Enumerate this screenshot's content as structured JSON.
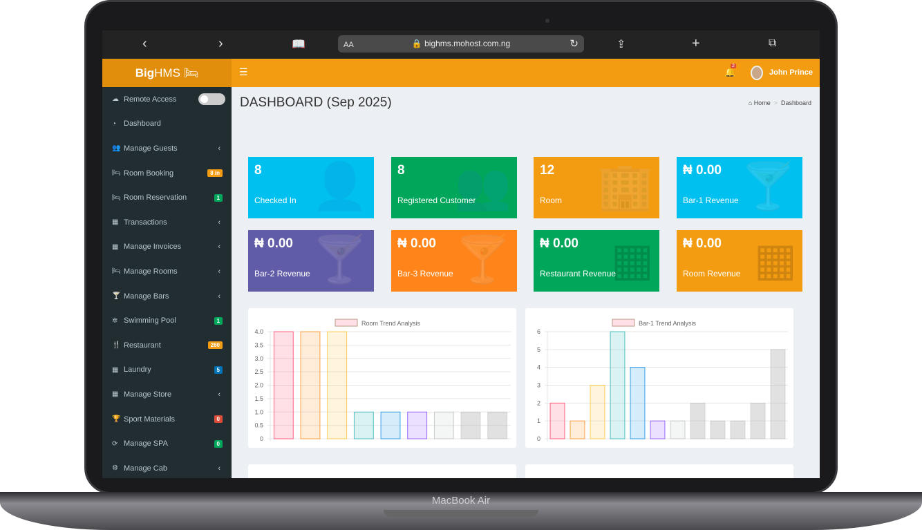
{
  "device": {
    "label": "MacBook Air"
  },
  "browser": {
    "url": "bighms.mohost.com.ng",
    "text_size": "AA",
    "icons": [
      "back-icon",
      "forward-icon",
      "bookmarks-icon",
      "reload-icon",
      "share-icon",
      "new-tab-icon",
      "tabs-icon"
    ]
  },
  "header": {
    "logo_bold": "Big",
    "logo_rest": "HMS",
    "notifications": "2",
    "user": "John Prince",
    "accent": "#f39c12"
  },
  "sidebar": {
    "items": [
      {
        "label": "Remote Access",
        "icon": "cloud-icon",
        "toggle": false
      },
      {
        "label": "Dashboard",
        "icon": "dashboard-icon"
      },
      {
        "label": "Manage Guests",
        "icon": "users-icon",
        "chevron": true
      },
      {
        "label": "Room Booking",
        "icon": "bed-icon",
        "badge": "8 in",
        "badge_color": "#f39c12"
      },
      {
        "label": "Room Reservation",
        "icon": "bed-icon",
        "badge": "1",
        "badge_color": "#00a65a"
      },
      {
        "label": "Transactions",
        "icon": "table-icon",
        "chevron": true
      },
      {
        "label": "Manage Invoices",
        "icon": "table-icon",
        "chevron": true
      },
      {
        "label": "Manage Rooms",
        "icon": "bed-icon",
        "chevron": true
      },
      {
        "label": "Manage Bars",
        "icon": "cocktail-icon",
        "chevron": true
      },
      {
        "label": "Swimming Pool",
        "icon": "gear-icon",
        "badge": "1",
        "badge_color": "#00a65a"
      },
      {
        "label": "Restaurant",
        "icon": "cutlery-icon",
        "badge": "260",
        "badge_color": "#f39c12"
      },
      {
        "label": "Laundry",
        "icon": "table-icon",
        "badge": "5",
        "badge_color": "#0073b7"
      },
      {
        "label": "Manage Store",
        "icon": "table-icon",
        "chevron": true
      },
      {
        "label": "Sport Materials",
        "icon": "trophy-icon",
        "badge": "0",
        "badge_color": "#dd4b39"
      },
      {
        "label": "Manage SPA",
        "icon": "refresh-icon",
        "badge": "0",
        "badge_color": "#00a65a"
      },
      {
        "label": "Manage Cab",
        "icon": "cogs-icon",
        "chevron": true
      }
    ]
  },
  "main": {
    "title": "DASHBOARD (Sep 2025)",
    "breadcrumb": [
      "Home",
      "Dashboard"
    ],
    "cards": [
      {
        "value": "8",
        "label": "Checked In",
        "color": "#00c0ef",
        "icon": "user-plus-icon"
      },
      {
        "value": "8",
        "label": "Registered Customer",
        "color": "#00a65a",
        "icon": "users-icon"
      },
      {
        "value": "12",
        "label": "Room",
        "color": "#f39c12",
        "icon": "building-icon"
      },
      {
        "value": "₦ 0.00",
        "label": "Bar-1 Revenue",
        "color": "#00c0ef",
        "icon": "cocktail-icon"
      },
      {
        "value": "₦ 0.00",
        "label": "Bar-2 Revenue",
        "color": "#605ca8",
        "icon": "cocktail-icon"
      },
      {
        "value": "₦ 0.00",
        "label": "Bar-3 Revenue",
        "color": "#ff851b",
        "icon": "cocktail-icon"
      },
      {
        "value": "₦ 0.00",
        "label": "Restaurant Revenue",
        "color": "#00a65a",
        "icon": "calculator-icon"
      },
      {
        "value": "₦ 0.00",
        "label": "Room Revenue",
        "color": "#f39c12",
        "icon": "calculator-icon"
      }
    ]
  },
  "chart_data": [
    {
      "type": "bar",
      "legend": "Room Trend Analysis",
      "legend_position": "top",
      "values": [
        4,
        4,
        4,
        1,
        1,
        1,
        1,
        1,
        1
      ],
      "ylim": [
        0,
        4
      ],
      "yticks": [
        "0",
        "0.5",
        "1.0",
        "1.5",
        "2.0",
        "2.5",
        "3.0",
        "3.5",
        "4.0"
      ],
      "grid": true
    },
    {
      "type": "bar",
      "legend": "Bar-1 Trend Analysis",
      "legend_position": "top",
      "values": [
        2,
        1,
        3,
        6,
        4,
        1,
        1,
        2,
        1,
        1,
        2,
        5
      ],
      "ylim": [
        0,
        6
      ],
      "yticks": [
        "0",
        "1",
        "2",
        "3",
        "4",
        "5",
        "6"
      ],
      "grid": true
    }
  ]
}
